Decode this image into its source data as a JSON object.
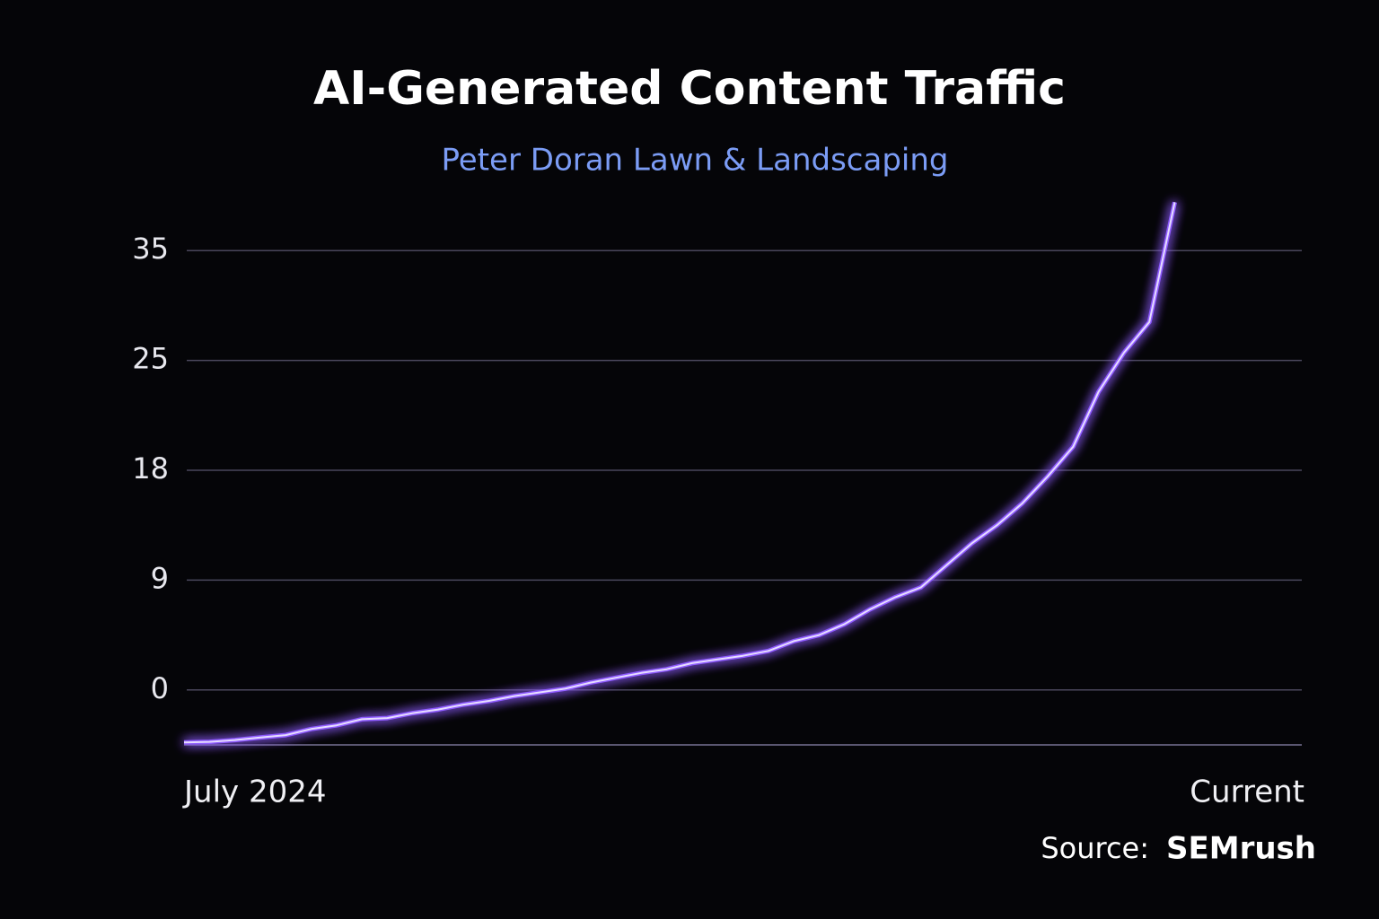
{
  "chart_data": {
    "type": "line",
    "title": "AI-Generated Content Traffic",
    "subtitle": "Peter Doran Lawn & Landscaping",
    "source_prefix": "Source:",
    "source_name": "SEMrush",
    "yscale": "tick-spaced",
    "categories": [
      "July 2024",
      null,
      null,
      null,
      null,
      null,
      null,
      null,
      null,
      null,
      null,
      null,
      null,
      null,
      null,
      null,
      null,
      null,
      null,
      null,
      null,
      null,
      null,
      null,
      null,
      null,
      null,
      null,
      null,
      null,
      null,
      null,
      null,
      null,
      null,
      null,
      null,
      null,
      null,
      null,
      null,
      null,
      null,
      null,
      "Current"
    ],
    "series": [
      {
        "color": "#8f5bff",
        "values": [
          -4.3,
          -4.25,
          -4.1,
          -3.9,
          -3.7,
          -3.2,
          -2.9,
          -2.4,
          -2.3,
          -1.9,
          -1.6,
          -1.2,
          -0.9,
          -0.5,
          -0.2,
          0.1,
          0.6,
          1.0,
          1.4,
          1.7,
          2.2,
          2.5,
          2.8,
          3.2,
          4.0,
          4.5,
          5.4,
          6.6,
          7.6,
          8.4,
          10.2,
          12.0,
          13.5,
          15.3,
          17.5,
          19.5,
          23.0,
          25.7,
          28.5,
          39.4,
          null,
          null,
          null,
          null,
          null
        ]
      }
    ],
    "ylim": [
      -4.5,
      40
    ],
    "yticks": [
      0,
      9,
      18,
      25,
      35
    ],
    "grid": true
  }
}
